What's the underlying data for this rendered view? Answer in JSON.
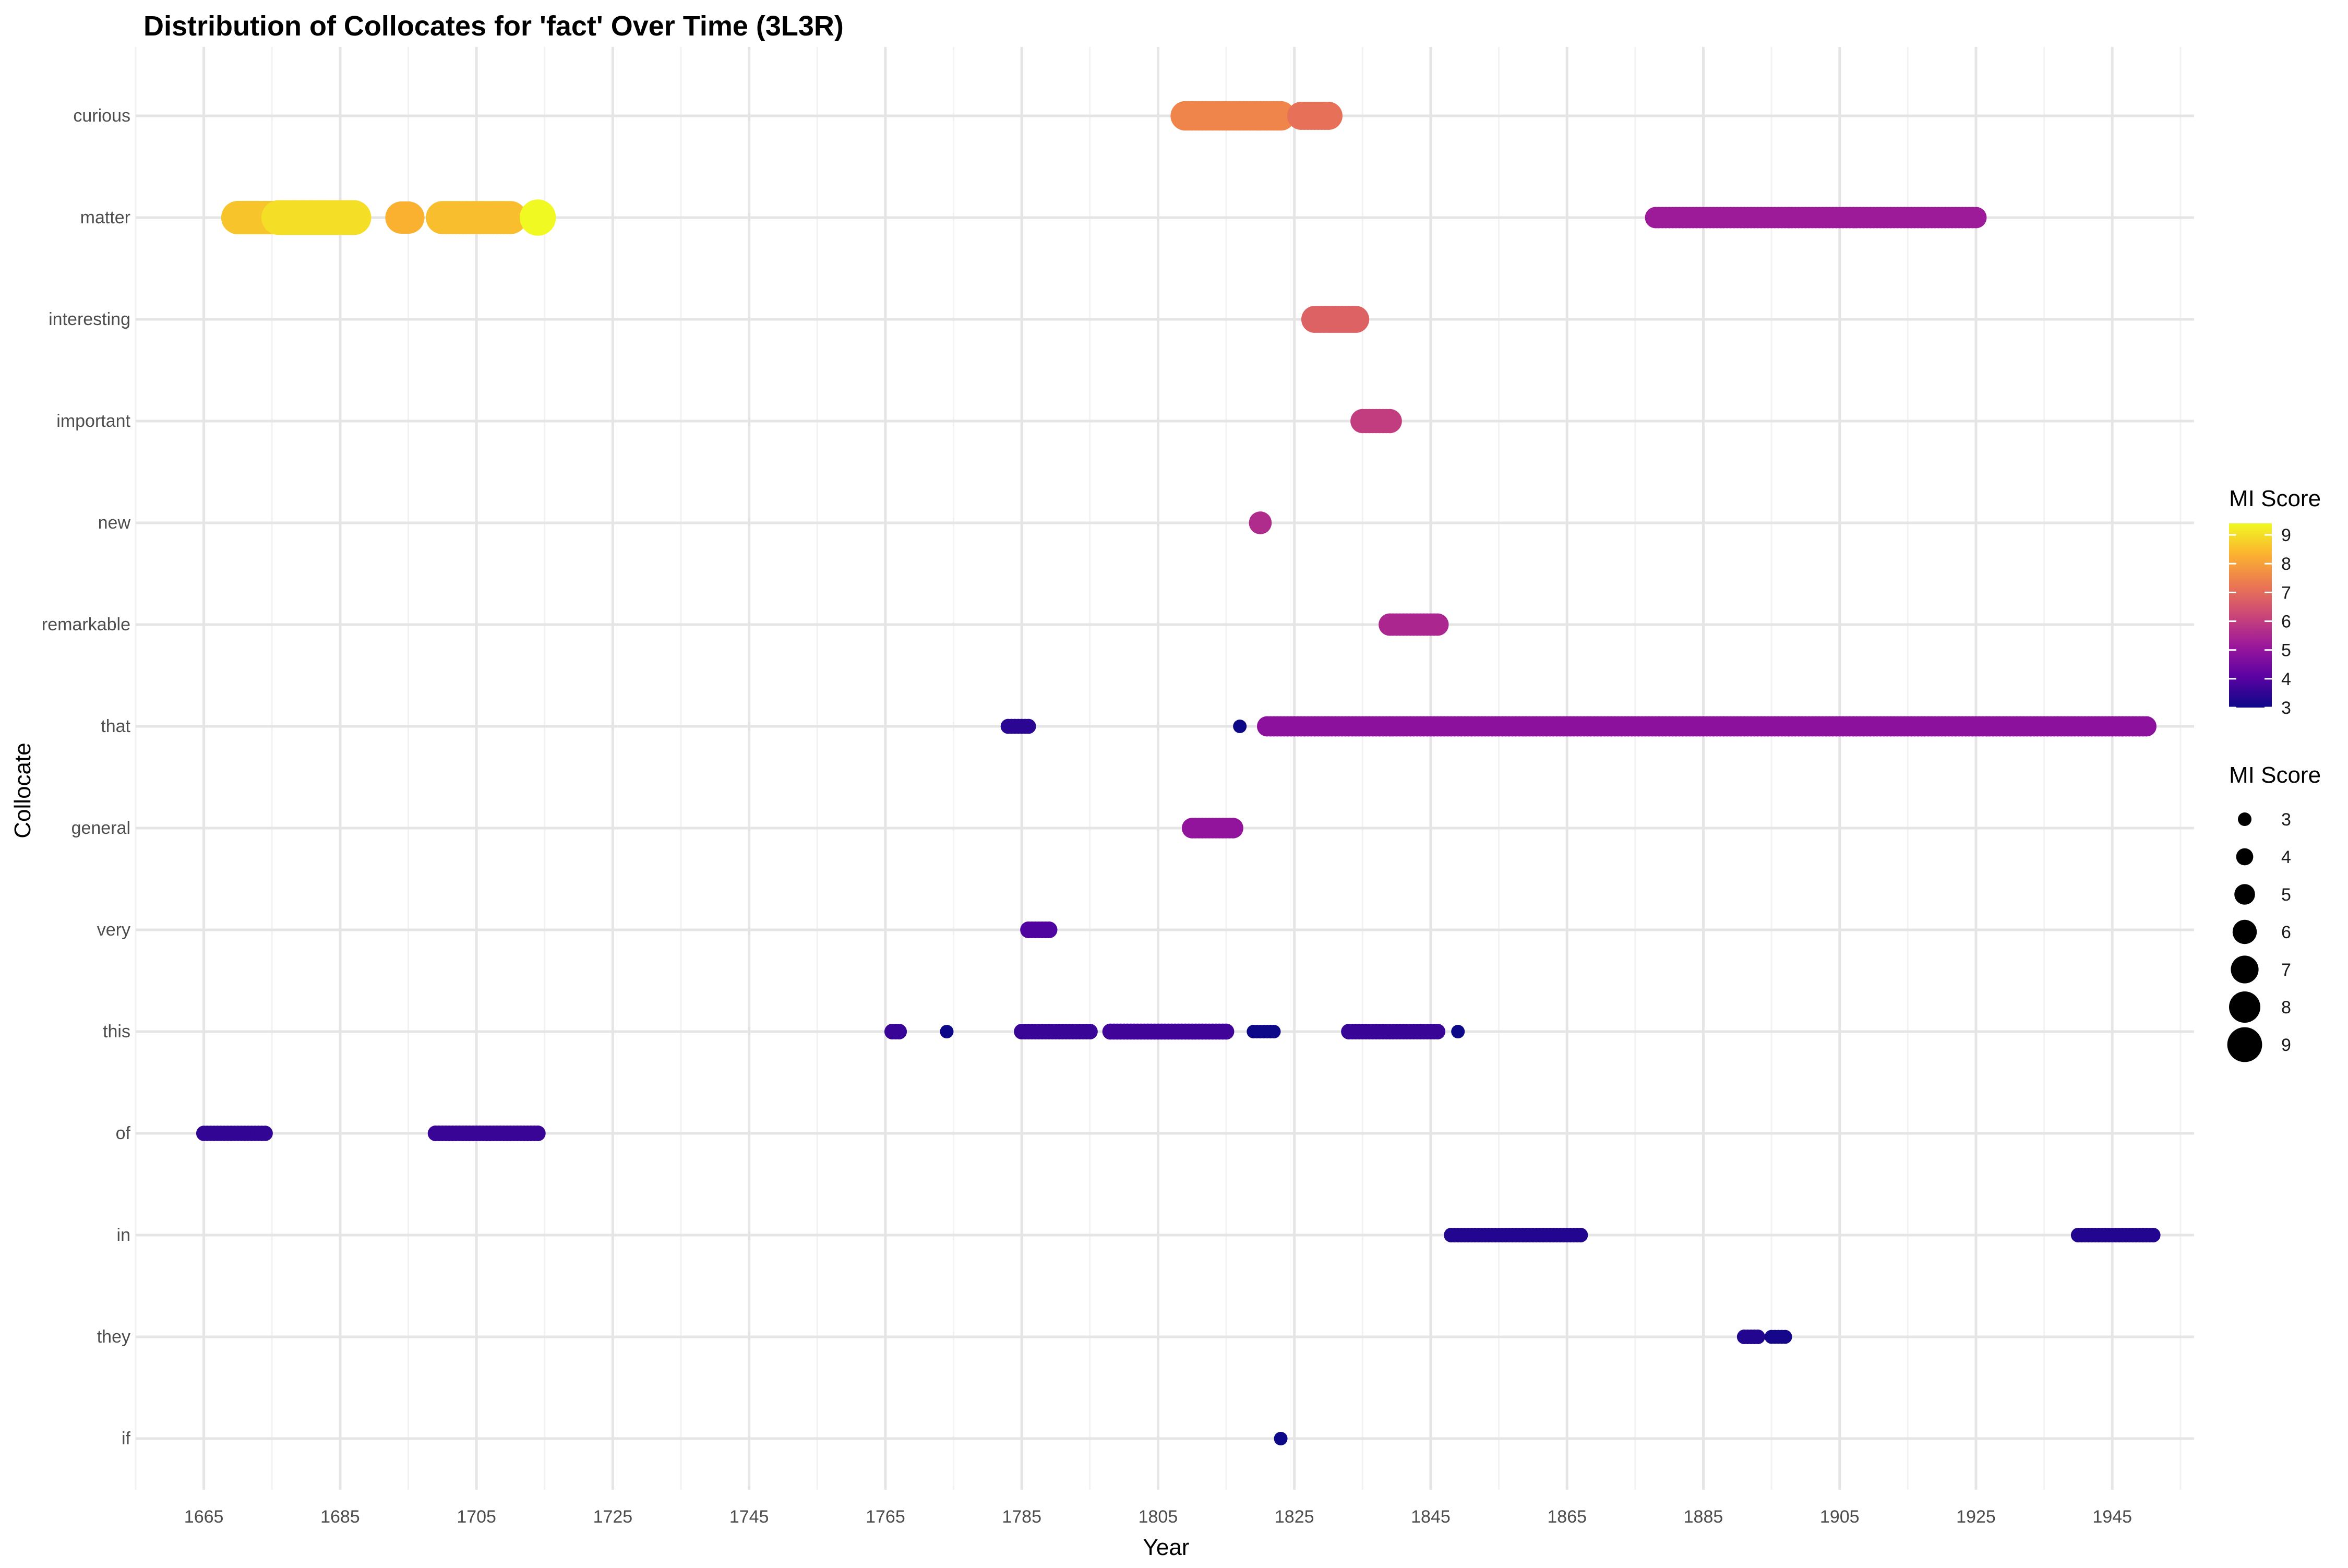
{
  "chart_data": {
    "type": "scatter",
    "title": "Distribution of Collocates for 'fact' Over Time (3L3R)",
    "xlabel": "Year",
    "ylabel": "Collocate",
    "xlim": [
      1655,
      1957
    ],
    "x_ticks": [
      1665,
      1685,
      1705,
      1725,
      1745,
      1765,
      1785,
      1805,
      1825,
      1845,
      1865,
      1885,
      1905,
      1925,
      1945
    ],
    "categories": [
      "if",
      "they",
      "in",
      "of",
      "this",
      "very",
      "general",
      "that",
      "remarkable",
      "new",
      "important",
      "interesting",
      "matter",
      "curious"
    ],
    "grid": true,
    "legend_position": "right",
    "color_legend": {
      "title": "MI Score",
      "ticks": [
        3,
        4,
        5,
        6,
        7,
        8,
        9
      ],
      "range": [
        3,
        9.4
      ],
      "palette": [
        "#0d0887",
        "#5b02a3",
        "#9a179b",
        "#cb4678",
        "#eb7852",
        "#fbb32f",
        "#f0f921"
      ]
    },
    "size_legend": {
      "title": "MI Score",
      "values": [
        3,
        4,
        5,
        6,
        7,
        8,
        9
      ]
    },
    "series": [
      {
        "collocate": "curious",
        "segments": [
          {
            "x_start": 1809,
            "x_end": 1823,
            "mi": 7.5
          },
          {
            "x_start": 1826,
            "x_end": 1830,
            "mi": 7.1
          }
        ]
      },
      {
        "collocate": "matter",
        "segments": [
          {
            "x_start": 1670,
            "x_end": 1676,
            "mi": 8.6
          },
          {
            "x_start": 1676,
            "x_end": 1687,
            "mi": 9.0
          },
          {
            "x_start": 1694,
            "x_end": 1695,
            "mi": 8.3
          },
          {
            "x_start": 1700,
            "x_end": 1710,
            "mi": 8.5
          },
          {
            "x_start": 1714,
            "x_end": 1714,
            "mi": 9.4
          },
          {
            "x_start": 1878,
            "x_end": 1925,
            "mi": 5.2
          }
        ]
      },
      {
        "collocate": "interesting",
        "segments": [
          {
            "x_start": 1828,
            "x_end": 1834,
            "mi": 6.8
          }
        ]
      },
      {
        "collocate": "important",
        "segments": [
          {
            "x_start": 1835,
            "x_end": 1839,
            "mi": 6.0
          }
        ]
      },
      {
        "collocate": "new",
        "segments": [
          {
            "x_start": 1820,
            "x_end": 1820,
            "mi": 5.6
          }
        ]
      },
      {
        "collocate": "remarkable",
        "segments": [
          {
            "x_start": 1839,
            "x_end": 1846,
            "mi": 5.5
          }
        ]
      },
      {
        "collocate": "that",
        "segments": [
          {
            "x_start": 1783,
            "x_end": 1786,
            "mi": 3.4
          },
          {
            "x_start": 1817,
            "x_end": 1817,
            "mi": 3.0
          },
          {
            "x_start": 1821,
            "x_end": 1950,
            "mi": 4.9
          }
        ]
      },
      {
        "collocate": "general",
        "segments": [
          {
            "x_start": 1810,
            "x_end": 1816,
            "mi": 5.0
          }
        ]
      },
      {
        "collocate": "very",
        "segments": [
          {
            "x_start": 1786,
            "x_end": 1789,
            "mi": 3.9
          }
        ]
      },
      {
        "collocate": "this",
        "segments": [
          {
            "x_start": 1766,
            "x_end": 1767,
            "mi": 3.6
          },
          {
            "x_start": 1774,
            "x_end": 1774,
            "mi": 3.0
          },
          {
            "x_start": 1785,
            "x_end": 1795,
            "mi": 3.6
          },
          {
            "x_start": 1798,
            "x_end": 1815,
            "mi": 3.7
          },
          {
            "x_start": 1819,
            "x_end": 1822,
            "mi": 3.0
          },
          {
            "x_start": 1833,
            "x_end": 1846,
            "mi": 3.6
          },
          {
            "x_start": 1849,
            "x_end": 1849,
            "mi": 3.0
          }
        ]
      },
      {
        "collocate": "of",
        "segments": [
          {
            "x_start": 1665,
            "x_end": 1674,
            "mi": 3.5
          },
          {
            "x_start": 1699,
            "x_end": 1714,
            "mi": 3.6
          }
        ]
      },
      {
        "collocate": "in",
        "segments": [
          {
            "x_start": 1848,
            "x_end": 1867,
            "mi": 3.3
          },
          {
            "x_start": 1940,
            "x_end": 1951,
            "mi": 3.3
          }
        ]
      },
      {
        "collocate": "they",
        "segments": [
          {
            "x_start": 1891,
            "x_end": 1893,
            "mi": 3.3
          },
          {
            "x_start": 1895,
            "x_end": 1897,
            "mi": 3.1
          }
        ]
      },
      {
        "collocate": "if",
        "segments": [
          {
            "x_start": 1823,
            "x_end": 1823,
            "mi": 3.0
          }
        ]
      }
    ]
  }
}
